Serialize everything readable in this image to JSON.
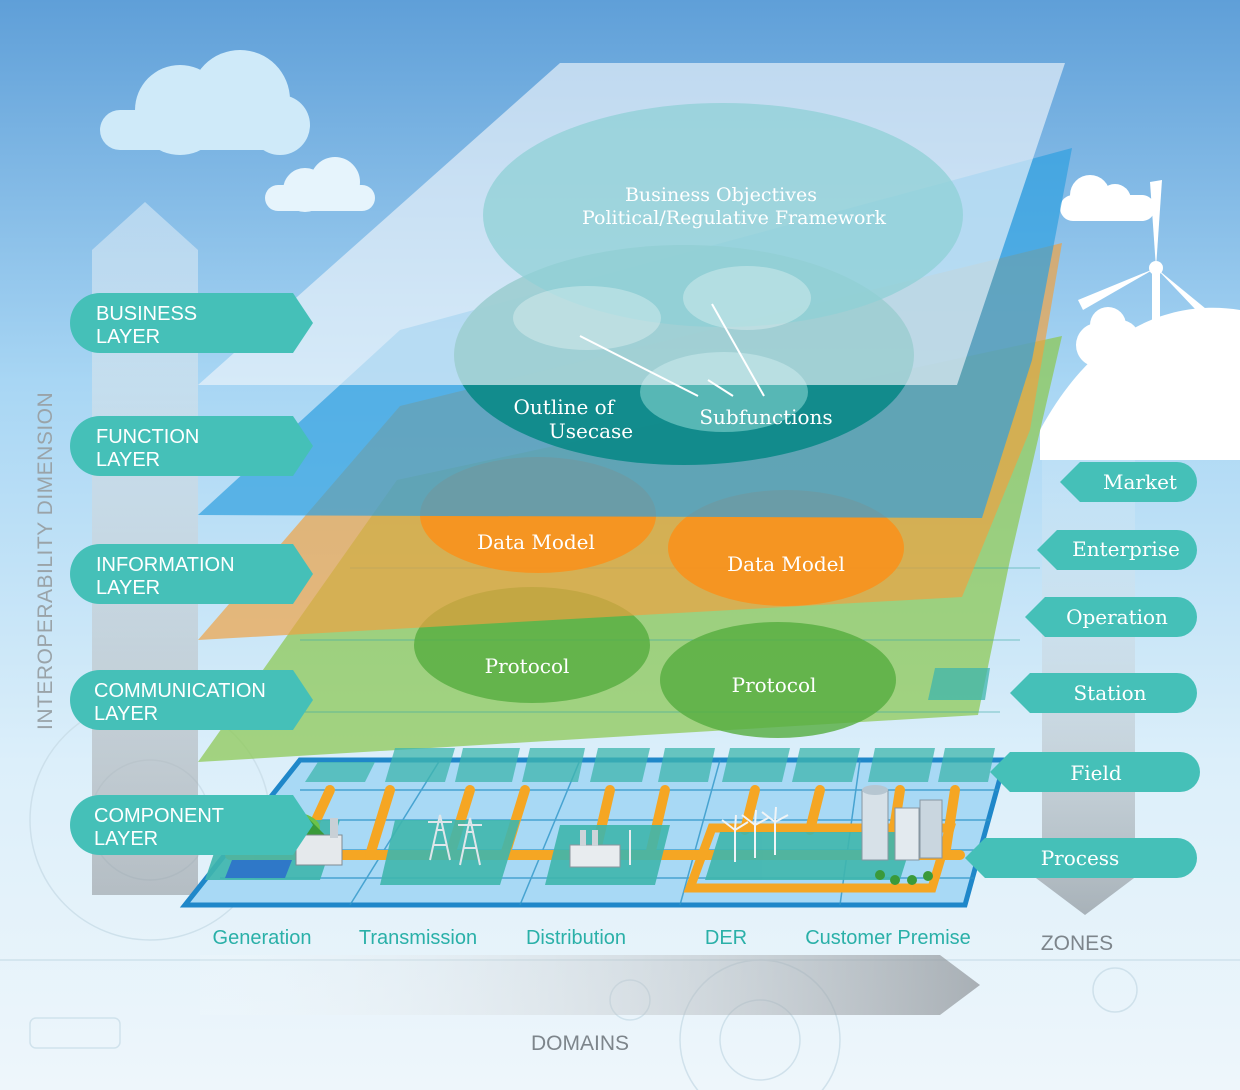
{
  "axis": {
    "vertical_label": "INTEROPERABILITY DIMENSION",
    "zones_label": "ZONES",
    "domains_label": "DOMAINS"
  },
  "layers": [
    {
      "line1": "BUSINESS",
      "line2": "LAYER"
    },
    {
      "line1": "FUNCTION",
      "line2": "LAYER"
    },
    {
      "line1": "INFORMATION",
      "line2": "LAYER"
    },
    {
      "line1": "COMMUNICATION",
      "line2": "LAYER"
    },
    {
      "line1": "COMPONENT",
      "line2": "LAYER"
    }
  ],
  "zones": [
    "Market",
    "Enterprise",
    "Operation",
    "Station",
    "Field",
    "Process"
  ],
  "domains": [
    "Generation",
    "Transmission",
    "Distribution",
    "DER",
    "Customer Premise"
  ],
  "business": {
    "line1": "Business Objectives",
    "line2": "Political/Regulative Framework"
  },
  "function": {
    "outline_line1": "Outline of",
    "outline_line2": "Usecase",
    "subfunctions": "Subfunctions"
  },
  "information": {
    "model_left": "Data Model",
    "model_right": "Data Model"
  },
  "communication": {
    "protocol_left": "Protocol",
    "protocol_right": "Protocol"
  },
  "colors": {
    "teal": "#45c0b8",
    "business_plane": "#e8f1f8",
    "function_plane": "#2f9fe0",
    "information_plane": "#f0a040",
    "communication_plane": "#8cc850",
    "grid": "#9fd6f2",
    "orange_link": "#f5a623"
  }
}
